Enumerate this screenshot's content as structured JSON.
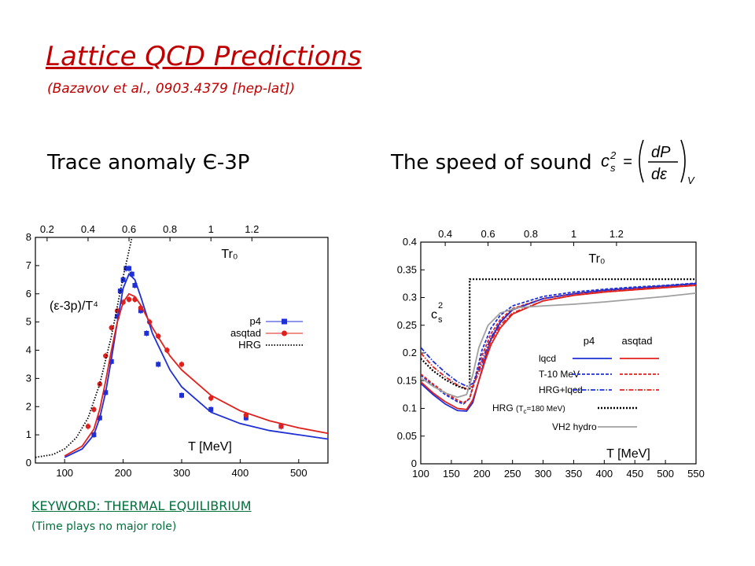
{
  "slide": {
    "title": "Lattice QCD Predictions",
    "subtitle": "(Bazavov et al., 0903.4379 [hep-lat])",
    "heading_left": "Trace anomaly Є-3P",
    "heading_right": "The speed of sound",
    "formula": {
      "lhs_base": "c",
      "lhs_sub": "s",
      "lhs_sup": "2",
      "num": "dP",
      "den": "dε",
      "sub": "V"
    },
    "keyword": "KEYWORD: THERMAL EQUILIBRIUM",
    "note": "(Time plays no major role)"
  },
  "chart_data": [
    {
      "type": "line",
      "title": "",
      "xlabel": "T [MeV]",
      "ylabel": "(ε-3p)/T⁴",
      "top_axis_label": "Tr₀",
      "xlim": [
        50,
        550
      ],
      "ylim": [
        0,
        8
      ],
      "x_ticks": [
        100,
        200,
        300,
        400,
        500
      ],
      "y_ticks": [
        0,
        1,
        2,
        3,
        4,
        5,
        6,
        7,
        8
      ],
      "top_ticks": [
        {
          "label": "0.2",
          "T": 70
        },
        {
          "label": "0.4",
          "T": 140
        },
        {
          "label": "0.6",
          "T": 210
        },
        {
          "label": "0.8",
          "T": 280
        },
        {
          "label": "1",
          "T": 350
        },
        {
          "label": "1.2",
          "T": 420
        }
      ],
      "legend_position": "right",
      "legend": [
        "p4",
        "asqtad",
        "HRG"
      ],
      "colors": {
        "p4": "#1f2fd6",
        "asqtad": "#e0201c",
        "HRG": "#000000"
      },
      "series": [
        {
          "name": "p4",
          "style": "markers",
          "marker": "square",
          "x": [
            150,
            160,
            170,
            180,
            190,
            195,
            200,
            205,
            210,
            215,
            220,
            230,
            240,
            260,
            300,
            350,
            410,
            470
          ],
          "y": [
            1.0,
            1.6,
            2.5,
            3.6,
            5.2,
            6.1,
            6.5,
            6.9,
            6.9,
            6.7,
            6.3,
            5.4,
            4.6,
            3.5,
            2.4,
            1.9,
            1.6,
            1.3
          ]
        },
        {
          "name": "asqtad",
          "style": "markers",
          "marker": "circle",
          "x": [
            140,
            150,
            160,
            170,
            180,
            190,
            200,
            210,
            220,
            230,
            245,
            260,
            275,
            300,
            350,
            410,
            470
          ],
          "y": [
            1.3,
            1.9,
            2.8,
            3.8,
            4.8,
            5.4,
            5.7,
            5.8,
            5.8,
            5.5,
            5.0,
            4.5,
            4.0,
            3.5,
            2.3,
            1.7,
            1.3
          ]
        },
        {
          "name": "p4 fit",
          "style": "solid",
          "color_key": "p4",
          "x": [
            100,
            130,
            150,
            160,
            170,
            180,
            190,
            200,
            210,
            220,
            230,
            250,
            280,
            300,
            350,
            400,
            450,
            500,
            550
          ],
          "y": [
            0.2,
            0.5,
            1.0,
            1.6,
            2.5,
            3.7,
            5.0,
            6.2,
            6.7,
            6.5,
            5.9,
            4.6,
            3.3,
            2.7,
            1.8,
            1.4,
            1.15,
            1.0,
            0.85
          ]
        },
        {
          "name": "asqtad fit",
          "style": "solid",
          "color_key": "asqtad",
          "x": [
            100,
            130,
            150,
            160,
            170,
            180,
            190,
            200,
            210,
            220,
            230,
            250,
            280,
            300,
            350,
            400,
            450,
            500,
            550
          ],
          "y": [
            0.25,
            0.6,
            1.2,
            1.9,
            2.9,
            4.0,
            5.0,
            5.7,
            6.0,
            5.9,
            5.6,
            4.8,
            3.8,
            3.3,
            2.4,
            1.85,
            1.5,
            1.25,
            1.05
          ]
        },
        {
          "name": "HRG",
          "style": "dotted",
          "color_key": "HRG",
          "x": [
            50,
            80,
            100,
            120,
            140,
            160,
            180,
            200,
            215
          ],
          "y": [
            0.2,
            0.3,
            0.5,
            0.9,
            1.6,
            2.8,
            4.5,
            6.6,
            8.0
          ]
        }
      ]
    },
    {
      "type": "line",
      "title": "",
      "xlabel": "T [MeV]",
      "ylabel": "c_s²",
      "top_axis_label": "Tr₀",
      "xlim": [
        100,
        550
      ],
      "ylim": [
        0,
        0.4
      ],
      "x_ticks": [
        100,
        150,
        200,
        250,
        300,
        350,
        400,
        450,
        500,
        550
      ],
      "y_ticks": [
        0,
        0.05,
        0.1,
        0.15,
        0.2,
        0.25,
        0.3,
        0.35,
        0.4
      ],
      "top_ticks": [
        {
          "label": "0.4",
          "T": 140
        },
        {
          "label": "0.6",
          "T": 210
        },
        {
          "label": "0.8",
          "T": 280
        },
        {
          "label": "1",
          "T": 350
        },
        {
          "label": "1.2",
          "T": 420
        }
      ],
      "legend_position": "bottom-right",
      "legend_headers": [
        "p4",
        "asqtad"
      ],
      "legend_rows": [
        "lqcd",
        "T-10 MeV",
        "HRG+lqcd"
      ],
      "legend_extra": [
        {
          "label": "HRG (T",
          "label_sub": "c",
          "label_rest": "=180 MeV)"
        },
        {
          "label": "VH2 hydro"
        }
      ],
      "colors": {
        "p4": "#1f2fd6",
        "asqtad": "#e0201c",
        "HRG": "#000000",
        "VH2": "#a0a0a0"
      },
      "series": [
        {
          "name": "lqcd p4",
          "style": "solid",
          "color_key": "p4",
          "x": [
            100,
            120,
            140,
            160,
            175,
            185,
            195,
            205,
            215,
            230,
            250,
            300,
            350,
            400,
            450,
            500,
            550
          ],
          "y": [
            0.145,
            0.125,
            0.108,
            0.096,
            0.095,
            0.11,
            0.15,
            0.19,
            0.225,
            0.255,
            0.278,
            0.298,
            0.307,
            0.313,
            0.317,
            0.321,
            0.325
          ]
        },
        {
          "name": "lqcd asqtad",
          "style": "solid",
          "color_key": "asqtad",
          "x": [
            100,
            120,
            140,
            160,
            175,
            185,
            195,
            205,
            215,
            230,
            250,
            300,
            350,
            400,
            450,
            500,
            550
          ],
          "y": [
            0.148,
            0.128,
            0.112,
            0.1,
            0.098,
            0.115,
            0.15,
            0.185,
            0.215,
            0.245,
            0.27,
            0.294,
            0.304,
            0.31,
            0.314,
            0.318,
            0.322
          ]
        },
        {
          "name": "T-10 MeV p4",
          "style": "dashed",
          "color_key": "p4",
          "x": [
            100,
            120,
            140,
            160,
            170,
            180,
            190,
            200,
            215,
            230,
            250,
            300,
            350,
            400,
            450,
            500,
            550
          ],
          "y": [
            0.16,
            0.142,
            0.125,
            0.112,
            0.108,
            0.118,
            0.16,
            0.205,
            0.245,
            0.268,
            0.285,
            0.302,
            0.31,
            0.315,
            0.319,
            0.322,
            0.326
          ]
        },
        {
          "name": "T-10 MeV asqtad",
          "style": "dashed",
          "color_key": "asqtad",
          "x": [
            100,
            120,
            140,
            160,
            170,
            180,
            190,
            200,
            215,
            230,
            250,
            300,
            350,
            400,
            450,
            500,
            550
          ],
          "y": [
            0.162,
            0.144,
            0.128,
            0.115,
            0.11,
            0.118,
            0.155,
            0.195,
            0.235,
            0.26,
            0.28,
            0.298,
            0.307,
            0.312,
            0.316,
            0.32,
            0.323
          ]
        },
        {
          "name": "HRG+lqcd p4",
          "style": "dashdot",
          "color_key": "p4",
          "x": [
            100,
            120,
            140,
            160,
            175,
            185,
            195,
            205,
            215,
            230,
            250,
            300,
            350,
            400,
            450,
            500,
            550
          ],
          "y": [
            0.21,
            0.185,
            0.165,
            0.148,
            0.14,
            0.145,
            0.17,
            0.2,
            0.228,
            0.256,
            0.278,
            0.298,
            0.307,
            0.313,
            0.317,
            0.321,
            0.325
          ]
        },
        {
          "name": "HRG+lqcd asqtad",
          "style": "dashdot",
          "color_key": "asqtad",
          "x": [
            100,
            120,
            140,
            160,
            175,
            185,
            195,
            205,
            215,
            230,
            250,
            300,
            350,
            400,
            450,
            500,
            550
          ],
          "y": [
            0.2,
            0.175,
            0.157,
            0.142,
            0.135,
            0.14,
            0.165,
            0.195,
            0.222,
            0.25,
            0.272,
            0.294,
            0.304,
            0.31,
            0.314,
            0.318,
            0.322
          ]
        },
        {
          "name": "HRG (Tc=180 MeV)",
          "style": "dotted-thick",
          "color_key": "HRG",
          "x": [
            100,
            120,
            140,
            160,
            180,
            180,
            550
          ],
          "y": [
            0.19,
            0.168,
            0.152,
            0.14,
            0.133,
            0.333,
            0.333
          ]
        },
        {
          "name": "VH2 hydro",
          "style": "solid-grey",
          "color_key": "VH2",
          "x": [
            100,
            120,
            140,
            160,
            175,
            185,
            195,
            210,
            230,
            260,
            300,
            350,
            400,
            450,
            500,
            550
          ],
          "y": [
            0.155,
            0.14,
            0.128,
            0.12,
            0.125,
            0.16,
            0.21,
            0.25,
            0.272,
            0.282,
            0.285,
            0.288,
            0.292,
            0.297,
            0.302,
            0.308
          ]
        }
      ]
    }
  ]
}
